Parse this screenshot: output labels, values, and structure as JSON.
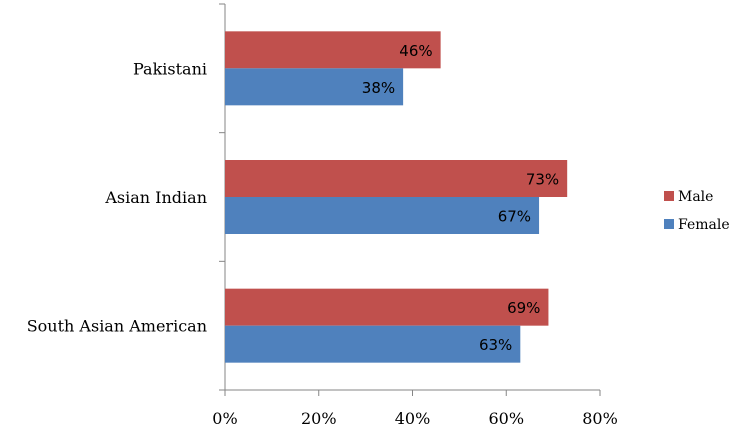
{
  "chart_data": {
    "type": "bar",
    "orientation": "horizontal",
    "title": "",
    "xlabel": "",
    "ylabel": "",
    "categories": [
      "South Asian American",
      "Asian Indian",
      "Pakistani"
    ],
    "series": [
      {
        "name": "Female",
        "color": "#4F81BD",
        "values": [
          63,
          67,
          38
        ],
        "labels": [
          "63%",
          "67%",
          "38%"
        ]
      },
      {
        "name": "Male",
        "color": "#C0504D",
        "values": [
          69,
          73,
          46
        ],
        "labels": [
          "69%",
          "73%",
          "46%"
        ]
      }
    ],
    "xlim": [
      0,
      80
    ],
    "x_ticks": [
      0,
      20,
      40,
      60,
      80
    ],
    "x_tick_labels": [
      "0%",
      "20%",
      "40%",
      "60%",
      "80%"
    ],
    "grid": false,
    "legend": {
      "position": "right",
      "order": [
        "Male",
        "Female"
      ]
    }
  }
}
